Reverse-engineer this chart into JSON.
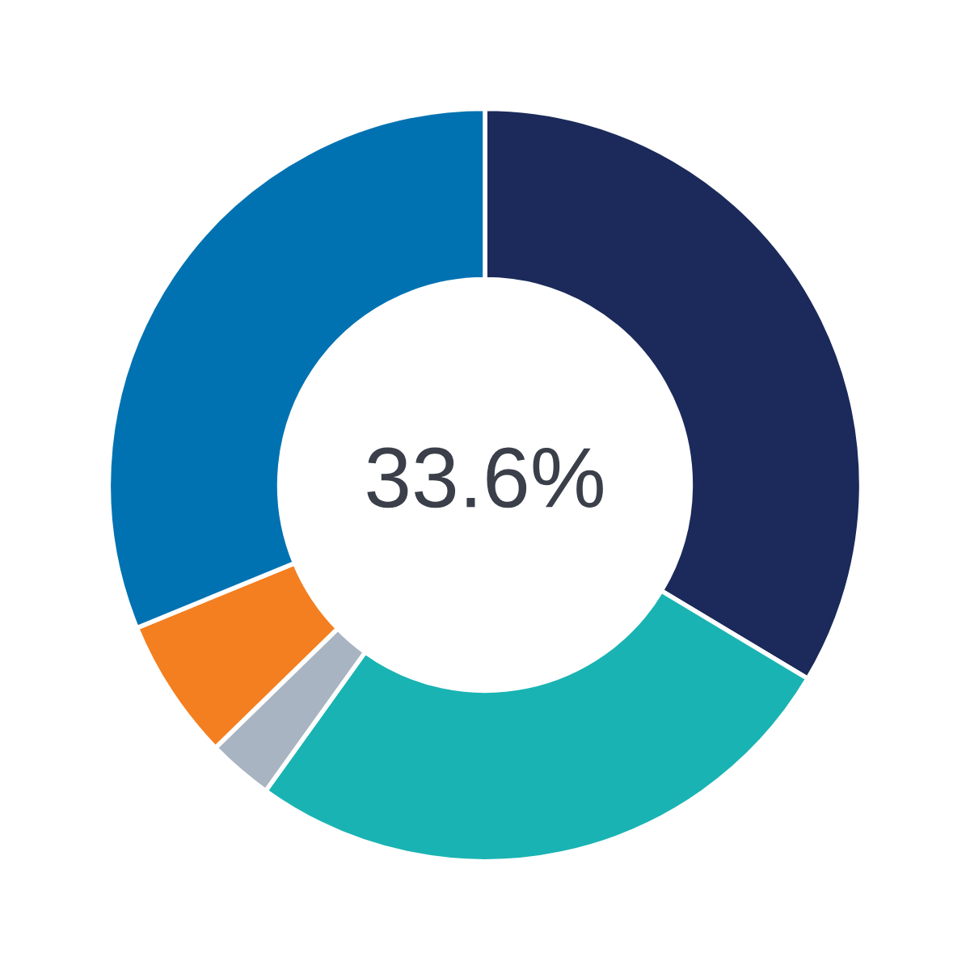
{
  "chart_data": {
    "type": "donut",
    "categories": [
      null,
      null,
      null,
      null,
      null
    ],
    "values": [
      33.6,
      26.3,
      2.8,
      6.1,
      31.2
    ],
    "colors": [
      "#1b2a5a",
      "#1ab3b3",
      "#a9b4c2",
      "#f47f20",
      "#0072b1"
    ],
    "annotations": [
      "33.6%"
    ]
  }
}
